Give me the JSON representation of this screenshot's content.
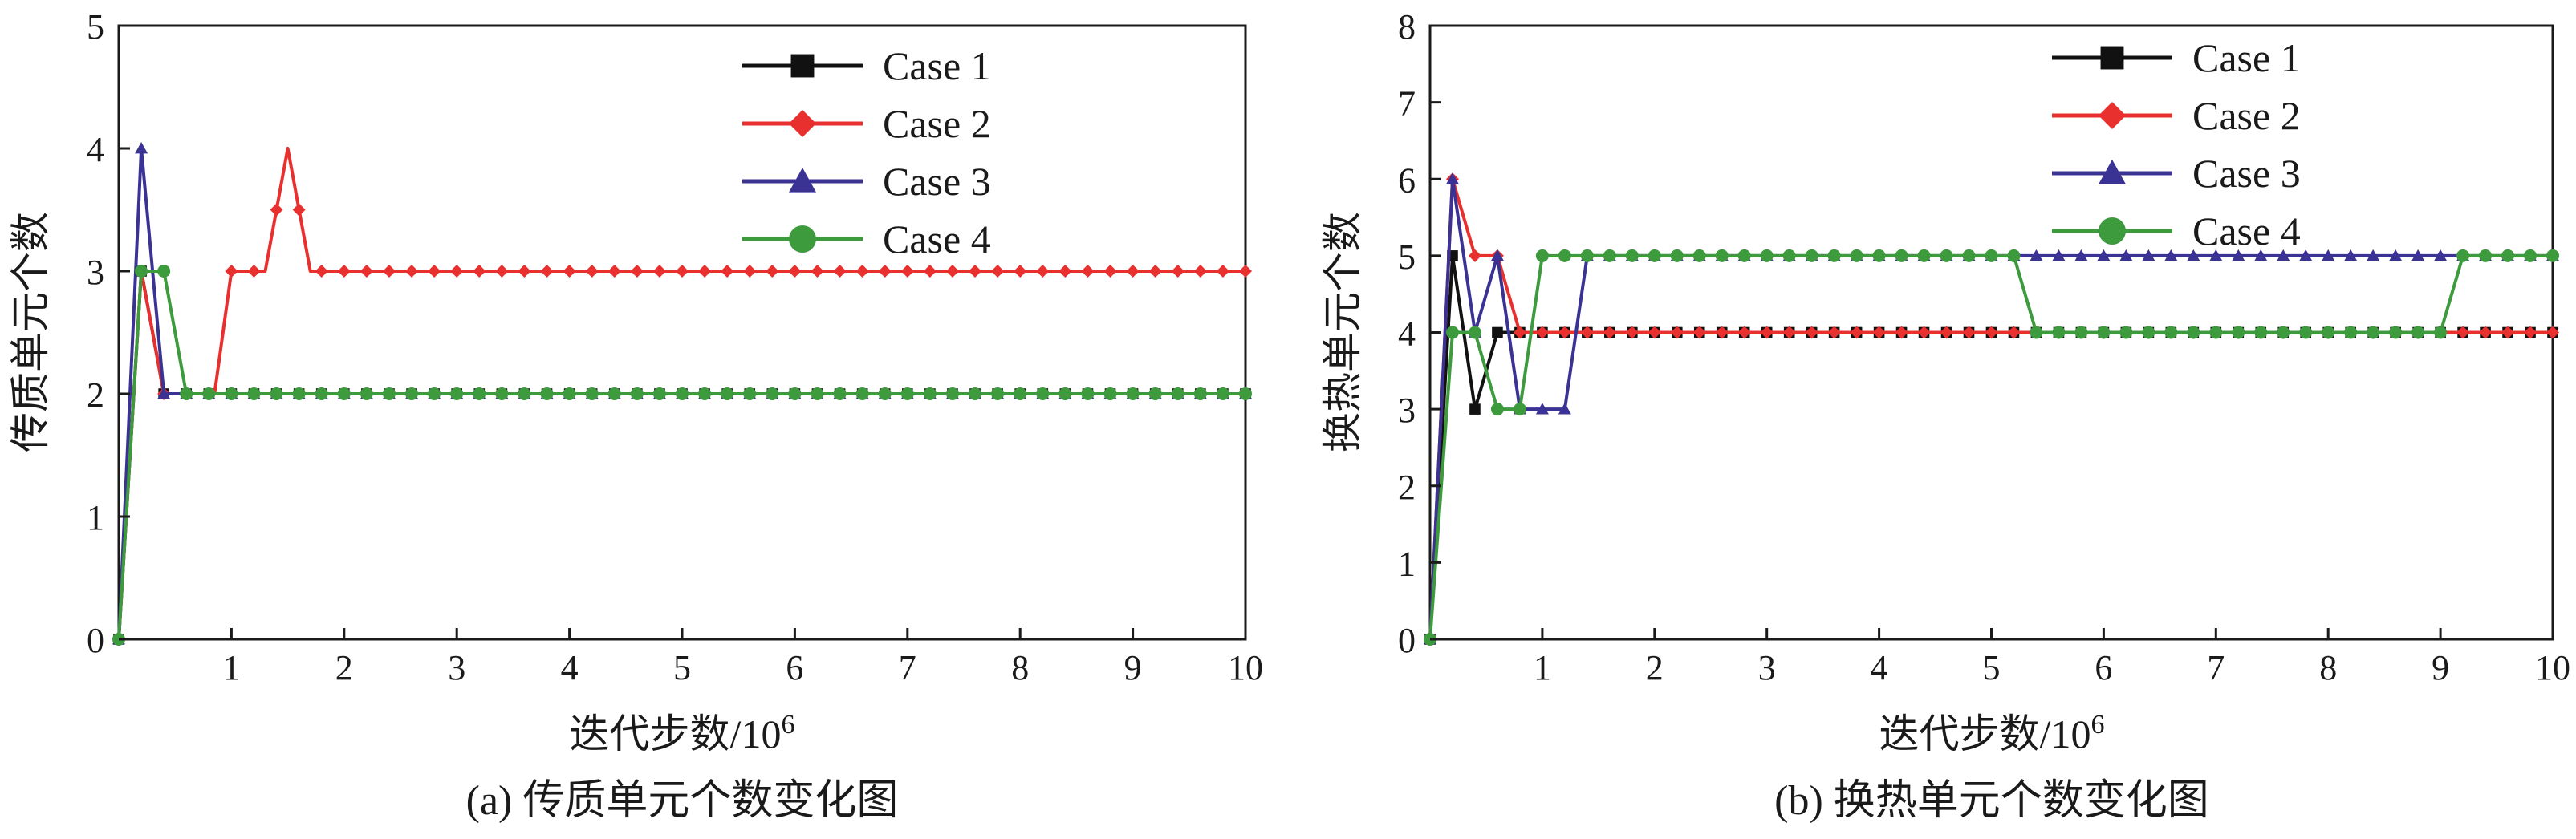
{
  "chart_data": [
    {
      "id": "a",
      "type": "line",
      "caption": "(a) 传质单元个数变化图",
      "xlabel": "迭代步数/10",
      "xlabel_sup": "6",
      "ylabel": "传质单元个数",
      "xlim": [
        0,
        10
      ],
      "ylim": [
        0,
        5
      ],
      "xticks": [
        1,
        2,
        3,
        4,
        5,
        6,
        7,
        8,
        9,
        10
      ],
      "xtick_labels": [
        "1",
        "2",
        "3",
        "4",
        "5",
        "6",
        "7",
        "8",
        "9",
        "10"
      ],
      "yticks": [
        0,
        1,
        2,
        3,
        4,
        5
      ],
      "ytick_labels": [
        "0",
        "1",
        "2",
        "3",
        "4",
        "5"
      ],
      "grid": false,
      "legend_position": "top-right",
      "marker_spacing": 0.2,
      "series": [
        {
          "name": "Case 1",
          "color": "#111111",
          "marker": "square",
          "x": [
            0,
            0.2,
            0.4,
            0.6,
            10
          ],
          "y": [
            0,
            3,
            2,
            2,
            2
          ]
        },
        {
          "name": "Case 2",
          "color": "#e8302e",
          "marker": "diamond",
          "x": [
            0,
            0.2,
            0.4,
            0.6,
            0.85,
            1.0,
            1.15,
            1.3,
            1.5,
            1.7,
            1.9,
            10
          ],
          "y": [
            0,
            3,
            2,
            2,
            2,
            3,
            3,
            3,
            4,
            3,
            3,
            3
          ]
        },
        {
          "name": "Case 3",
          "color": "#3b3393",
          "marker": "triangle",
          "x": [
            0,
            0.2,
            0.4,
            0.6,
            10
          ],
          "y": [
            0,
            4,
            2,
            2,
            2
          ]
        },
        {
          "name": "Case 4",
          "color": "#3d9a3d",
          "marker": "circle",
          "x": [
            0,
            0.2,
            0.4,
            0.6,
            10
          ],
          "y": [
            0,
            3,
            3,
            2,
            2
          ]
        }
      ]
    },
    {
      "id": "b",
      "type": "line",
      "caption": "(b) 换热单元个数变化图",
      "xlabel": "迭代步数/10",
      "xlabel_sup": "6",
      "ylabel": "换热单元个数",
      "xlim": [
        0,
        10
      ],
      "ylim": [
        0,
        8
      ],
      "xticks": [
        1,
        2,
        3,
        4,
        5,
        6,
        7,
        8,
        9,
        10
      ],
      "xtick_labels": [
        "1",
        "2",
        "3",
        "4",
        "5",
        "6",
        "7",
        "8",
        "9",
        "10"
      ],
      "yticks": [
        0,
        1,
        2,
        3,
        4,
        5,
        6,
        7,
        8
      ],
      "ytick_labels": [
        "0",
        "1",
        "2",
        "3",
        "4",
        "5",
        "6",
        "7",
        "8"
      ],
      "grid": false,
      "legend_position": "top-right",
      "marker_spacing": 0.2,
      "series": [
        {
          "name": "Case 1",
          "color": "#111111",
          "marker": "square",
          "x": [
            0,
            0.2,
            0.4,
            0.6,
            0.8,
            10
          ],
          "y": [
            0,
            5,
            3,
            4,
            4,
            4
          ]
        },
        {
          "name": "Case 2",
          "color": "#e8302e",
          "marker": "diamond",
          "x": [
            0,
            0.2,
            0.4,
            0.6,
            0.8,
            1.0,
            10
          ],
          "y": [
            0,
            6,
            5,
            5,
            4,
            4,
            4
          ]
        },
        {
          "name": "Case 3",
          "color": "#3b3393",
          "marker": "triangle",
          "x": [
            0,
            0.2,
            0.4,
            0.6,
            0.8,
            1.0,
            1.2,
            1.4,
            1.6,
            10
          ],
          "y": [
            0,
            6,
            4,
            5,
            3,
            3,
            3,
            5,
            5,
            5
          ]
        },
        {
          "name": "Case 4",
          "color": "#3d9a3d",
          "marker": "circle",
          "x": [
            0,
            0.2,
            0.4,
            0.6,
            0.8,
            1.0,
            5.2,
            5.4,
            9.0,
            9.2,
            10
          ],
          "y": [
            0,
            4,
            4,
            3,
            3,
            5,
            5,
            4,
            4,
            5,
            5
          ]
        }
      ]
    }
  ]
}
